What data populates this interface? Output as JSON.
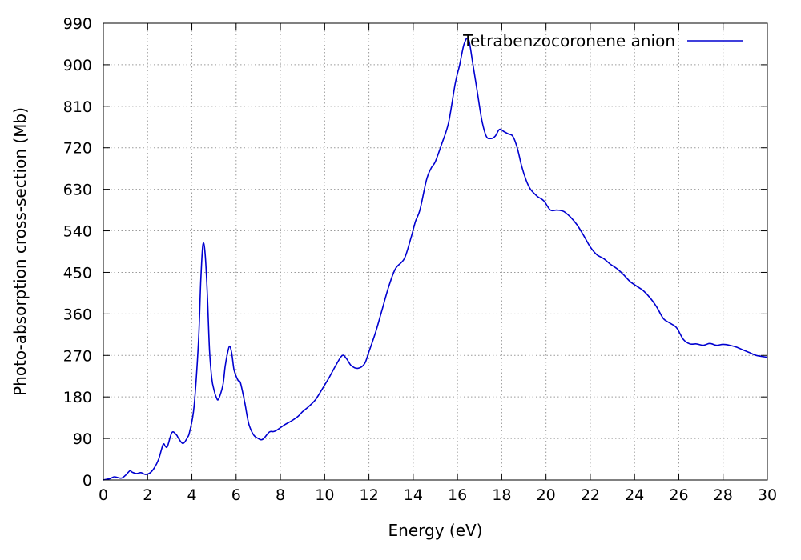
{
  "chart_data": {
    "type": "line",
    "title": "",
    "xlabel": "Energy (eV)",
    "ylabel": "Photo-absorption cross-section (Mb)",
    "xlim": [
      0,
      30
    ],
    "ylim": [
      0,
      990
    ],
    "xticks": [
      0,
      2,
      4,
      6,
      8,
      10,
      12,
      14,
      16,
      18,
      20,
      22,
      24,
      26,
      28,
      30
    ],
    "yticks": [
      0,
      90,
      180,
      270,
      360,
      450,
      540,
      630,
      720,
      810,
      900,
      990
    ],
    "grid": true,
    "legend_position": "top-right",
    "series": [
      {
        "name": "Tetrabenzocoronene anion",
        "color": "#0000d0",
        "x": [
          0,
          0.3,
          0.5,
          0.8,
          1.0,
          1.2,
          1.3,
          1.5,
          1.7,
          1.9,
          2.1,
          2.3,
          2.5,
          2.7,
          2.8,
          2.9,
          3.1,
          3.3,
          3.4,
          3.6,
          3.8,
          3.9,
          4.1,
          4.3,
          4.4,
          4.5,
          4.6,
          4.7,
          4.8,
          4.9,
          5.0,
          5.1,
          5.2,
          5.4,
          5.5,
          5.6,
          5.7,
          5.8,
          5.9,
          6.0,
          6.1,
          6.2,
          6.4,
          6.5,
          6.6,
          6.8,
          7.0,
          7.2,
          7.5,
          7.7,
          7.9,
          8.2,
          8.5,
          8.8,
          9.0,
          9.3,
          9.6,
          9.9,
          10.2,
          10.5,
          10.8,
          11.0,
          11.2,
          11.5,
          11.8,
          12.0,
          12.3,
          12.6,
          12.9,
          13.2,
          13.6,
          13.9,
          14.1,
          14.3,
          14.6,
          14.8,
          15.0,
          15.3,
          15.6,
          15.9,
          16.1,
          16.3,
          16.5,
          16.7,
          16.9,
          17.1,
          17.3,
          17.5,
          17.7,
          17.9,
          18.1,
          18.3,
          18.5,
          18.7,
          18.9,
          19.1,
          19.3,
          19.6,
          19.9,
          20.2,
          20.5,
          20.8,
          21.1,
          21.4,
          21.7,
          22.0,
          22.3,
          22.6,
          22.9,
          23.2,
          23.5,
          23.8,
          24.1,
          24.4,
          24.7,
          25.0,
          25.3,
          25.6,
          25.9,
          26.2,
          26.5,
          26.8,
          27.1,
          27.4,
          27.7,
          28.0,
          28.3,
          28.6,
          28.9,
          29.2,
          29.5,
          30.0
        ],
        "y": [
          0,
          3,
          7,
          4,
          10,
          20,
          17,
          14,
          16,
          12,
          15,
          26,
          45,
          77,
          73,
          73,
          103,
          98,
          90,
          79,
          92,
          105,
          160,
          300,
          430,
          510,
          490,
          400,
          280,
          220,
          195,
          180,
          175,
          205,
          245,
          272,
          290,
          275,
          240,
          225,
          215,
          210,
          165,
          138,
          117,
          97,
          90,
          88,
          104,
          105,
          110,
          120,
          128,
          138,
          148,
          160,
          175,
          198,
          222,
          248,
          270,
          262,
          248,
          242,
          252,
          278,
          320,
          370,
          420,
          458,
          480,
          525,
          560,
          585,
          650,
          675,
          690,
          730,
          775,
          860,
          900,
          945,
          955,
          900,
          840,
          780,
          745,
          740,
          745,
          760,
          755,
          750,
          745,
          720,
          680,
          650,
          630,
          615,
          605,
          585,
          585,
          582,
          570,
          553,
          530,
          505,
          488,
          480,
          468,
          458,
          445,
          430,
          420,
          410,
          395,
          375,
          350,
          340,
          330,
          305,
          295,
          295,
          292,
          296,
          292,
          294,
          292,
          288,
          282,
          276,
          270,
          266
        ]
      }
    ]
  }
}
